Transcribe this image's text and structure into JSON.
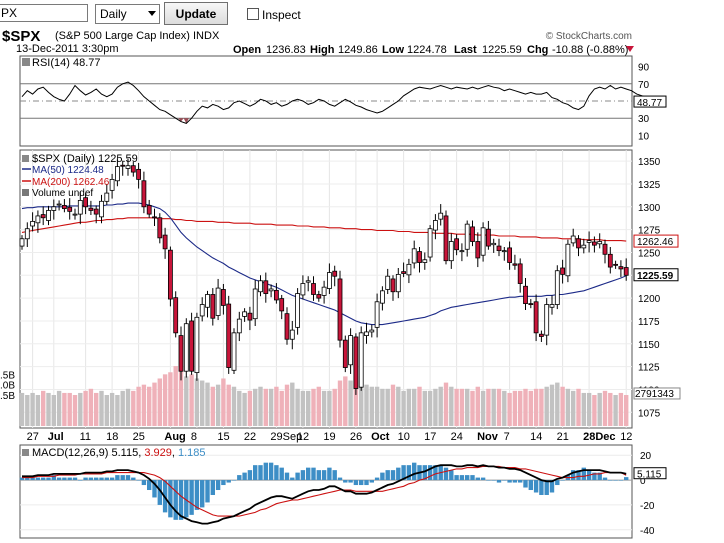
{
  "toolbar": {
    "symbol_value": "PX",
    "period_value": "Daily",
    "update_label": "Update",
    "inspect_label": "Inspect"
  },
  "header": {
    "symbol": "$SPX",
    "name": "(S&P 500 Large Cap Index) INDX",
    "date": "13-Dec-2011 3:30pm",
    "copyright": "© StockCharts.com",
    "open_label": "Open",
    "open": "1236.83",
    "high_label": "High",
    "high": "1249.86",
    "low_label": "Low",
    "low": "1224.78",
    "last_label": "Last",
    "last": "1225.59",
    "chg_label": "Chg",
    "chg": "-10.88 (-0.88%)"
  },
  "colors": {
    "up": "#ffffff",
    "down": "#c8153a",
    "ma50": "#1c2a88",
    "ma200": "#cc1111",
    "vol_down": "#efb1b9",
    "vol_up": "#c2c2c2",
    "macd": "#000000",
    "signal": "#cc1111",
    "hist": "#3d8ec6"
  },
  "chart_data": [
    {
      "type": "line",
      "name": "RSI panel",
      "legend": "RSI(14) 48.77",
      "current_label": "48.77",
      "current": 48.77,
      "ylim": [
        0,
        100
      ],
      "ticks": [
        90,
        70,
        50,
        30,
        10
      ],
      "levels": [
        70,
        30
      ],
      "values": [
        55,
        62,
        58,
        64,
        66,
        60,
        55,
        52,
        50,
        58,
        68,
        62,
        57,
        60,
        64,
        58,
        55,
        58,
        66,
        70,
        72,
        68,
        62,
        55,
        50,
        45,
        40,
        38,
        34,
        30,
        26,
        24,
        30,
        38,
        44,
        42,
        46,
        44,
        40,
        42,
        48,
        50,
        47,
        44,
        47,
        52,
        50,
        46,
        48,
        44,
        46,
        50,
        52,
        50,
        46,
        48,
        52,
        50,
        46,
        44,
        48,
        52,
        49,
        45,
        43,
        40,
        38,
        36,
        38,
        42,
        46,
        50,
        56,
        60,
        64,
        66,
        65,
        64,
        66,
        68,
        66,
        64,
        66,
        65,
        64,
        66,
        64,
        66,
        68,
        66,
        65,
        62,
        64,
        62,
        60,
        58,
        60,
        58,
        58,
        60,
        54,
        52,
        48,
        46,
        42,
        40,
        44,
        56,
        64,
        66,
        64,
        68,
        64,
        66,
        64,
        62,
        58,
        56,
        54,
        50,
        48.77
      ]
    },
    {
      "type": "candlestick",
      "name": "Price panel",
      "legend": [
        "$SPX (Daily) 1225.59",
        "MA(50) 1224.48",
        "MA(200) 1262.46",
        "Volume undef"
      ],
      "ylim": [
        1060,
        1360
      ],
      "ticks": [
        1350,
        1325,
        1300,
        1275,
        1250,
        1225,
        1200,
        1175,
        1150,
        1125,
        1100,
        1075
      ],
      "vol_ticks": [
        ".5B",
        ".0B",
        ".5B"
      ],
      "vol_tick_levels": [
        2.5,
        2.0,
        1.5
      ],
      "x_labels": [
        "27",
        "Jul",
        "11",
        "18",
        "25",
        "Aug",
        "8",
        "15",
        "22",
        "29Sep",
        "12",
        "19",
        "26",
        "Oct",
        "10",
        "17",
        "24",
        "Nov",
        "7",
        "14",
        "21",
        "28Dec",
        "12"
      ],
      "x_label_index": [
        2,
        6,
        12,
        17,
        22,
        28,
        33,
        38,
        43,
        48,
        53,
        58,
        63,
        67,
        72,
        77,
        82,
        87,
        92,
        97,
        102,
        107,
        114
      ],
      "ma200_label": "1262.46",
      "last_label": "1225.59",
      "volume_label": "2791343",
      "volume_label_value": 1.55,
      "ma200_value": 1262.46,
      "last_value": 1225.59,
      "close": [
        1265,
        1276,
        1284,
        1290,
        1288,
        1296,
        1300,
        1303,
        1298,
        1295,
        1292,
        1307,
        1300,
        1296,
        1292,
        1306,
        1315,
        1330,
        1344,
        1345,
        1345,
        1338,
        1330,
        1300,
        1292,
        1288,
        1266,
        1254,
        1199,
        1162,
        1120,
        1172,
        1120,
        1179,
        1193,
        1204,
        1178,
        1211,
        1192,
        1124,
        1162,
        1177,
        1185,
        1176,
        1210,
        1219,
        1205,
        1210,
        1198,
        1186,
        1155,
        1165,
        1205,
        1216,
        1219,
        1204,
        1200,
        1212,
        1228,
        1224,
        1154,
        1124,
        1159,
        1101,
        1162,
        1163,
        1165,
        1196,
        1208,
        1224,
        1207,
        1226,
        1227,
        1237,
        1254,
        1239,
        1242,
        1276,
        1285,
        1293,
        1241,
        1262,
        1253,
        1252,
        1281,
        1262,
        1244,
        1277,
        1257,
        1260,
        1252,
        1252,
        1239,
        1236,
        1216,
        1194,
        1193,
        1162,
        1158,
        1193,
        1193,
        1230,
        1226,
        1259,
        1268,
        1255,
        1258,
        1263,
        1258,
        1262,
        1248,
        1234,
        1236,
        1232,
        1225
      ],
      "ma50": [
        1298,
        1299,
        1299,
        1300,
        1300,
        1300,
        1300,
        1300,
        1300,
        1301,
        1301,
        1301,
        1301,
        1301,
        1301,
        1301,
        1302,
        1302,
        1303,
        1303,
        1304,
        1304,
        1304,
        1303,
        1302,
        1300,
        1298,
        1294,
        1288,
        1280,
        1272,
        1266,
        1261,
        1256,
        1252,
        1248,
        1244,
        1241,
        1238,
        1234,
        1231,
        1228,
        1225,
        1222,
        1220,
        1218,
        1216,
        1214,
        1212,
        1209,
        1206,
        1203,
        1201,
        1199,
        1197,
        1195,
        1193,
        1191,
        1189,
        1187,
        1184,
        1181,
        1178,
        1175,
        1173,
        1172,
        1171,
        1171,
        1171,
        1172,
        1173,
        1174,
        1175,
        1176,
        1177,
        1178,
        1179,
        1181,
        1183,
        1186,
        1188,
        1190,
        1191,
        1192,
        1193,
        1194,
        1195,
        1196,
        1197,
        1198,
        1199,
        1200,
        1201,
        1201,
        1202,
        1202,
        1202,
        1202,
        1202,
        1203,
        1203,
        1204,
        1204,
        1205,
        1206,
        1207,
        1208,
        1210,
        1212,
        1214,
        1216,
        1218,
        1220,
        1222,
        1224.48
      ],
      "ma200": [
        1272,
        1273,
        1274,
        1275,
        1276,
        1277,
        1278,
        1279,
        1280,
        1281,
        1282,
        1283,
        1283,
        1284,
        1285,
        1285,
        1286,
        1286,
        1287,
        1287,
        1288,
        1288,
        1288,
        1288,
        1288,
        1288,
        1287,
        1287,
        1287,
        1286,
        1286,
        1285,
        1285,
        1284,
        1284,
        1284,
        1284,
        1283,
        1283,
        1283,
        1282,
        1282,
        1282,
        1282,
        1281,
        1281,
        1281,
        1281,
        1280,
        1280,
        1280,
        1280,
        1279,
        1279,
        1279,
        1278,
        1278,
        1278,
        1277,
        1277,
        1277,
        1276,
        1276,
        1276,
        1275,
        1275,
        1275,
        1274,
        1274,
        1274,
        1274,
        1273,
        1273,
        1273,
        1272,
        1272,
        1272,
        1272,
        1271,
        1271,
        1271,
        1271,
        1270,
        1270,
        1270,
        1270,
        1269,
        1269,
        1269,
        1269,
        1268,
        1268,
        1268,
        1268,
        1267,
        1267,
        1267,
        1267,
        1266,
        1266,
        1266,
        1266,
        1265,
        1265,
        1265,
        1265,
        1264,
        1264,
        1264,
        1264,
        1263,
        1263,
        1263,
        1263,
        1262.46
      ],
      "volume": [
        1.6,
        1.5,
        1.6,
        1.5,
        1.7,
        1.6,
        1.5,
        1.7,
        1.6,
        1.6,
        1.5,
        1.6,
        1.7,
        1.8,
        1.6,
        1.7,
        1.5,
        1.6,
        1.5,
        1.7,
        1.8,
        1.7,
        1.9,
        2.0,
        1.9,
        2.1,
        2.3,
        2.5,
        2.6,
        2.9,
        2.7,
        2.4,
        2.5,
        2.3,
        2.2,
        2.1,
        1.9,
        2.0,
        2.3,
        2.0,
        1.9,
        1.7,
        1.6,
        1.7,
        1.8,
        1.9,
        1.8,
        1.8,
        1.9,
        1.7,
        2.0,
        2.1,
        1.8,
        1.7,
        1.7,
        1.8,
        1.9,
        1.7,
        1.7,
        1.8,
        2.2,
        2.4,
        2.2,
        2.4,
        2.1,
        2.0,
        1.9,
        1.9,
        1.8,
        1.8,
        2.0,
        1.9,
        1.7,
        1.8,
        1.8,
        1.9,
        1.7,
        1.7,
        1.8,
        1.9,
        2.1,
        1.9,
        1.8,
        1.8,
        1.8,
        1.7,
        1.9,
        1.7,
        1.8,
        1.8,
        1.8,
        1.7,
        1.6,
        1.7,
        1.7,
        1.8,
        1.7,
        1.8,
        1.8,
        1.9,
        2.0,
        2.1,
        1.9,
        1.8,
        1.7,
        1.8,
        1.6,
        1.6,
        1.5,
        1.6,
        1.7,
        1.6,
        1.5,
        1.6,
        1.5
      ]
    },
    {
      "type": "bar",
      "name": "MACD panel",
      "legend_name": "MACD(12,26,9)",
      "legend_macd": "5.115",
      "legend_signal": "3.929",
      "legend_hist": "1.185",
      "current_label": "5.115",
      "current": 5.115,
      "ylim": [
        -45,
        25
      ],
      "ticks": [
        20,
        0,
        -20,
        -40
      ],
      "tick_labels": [
        "20",
        "0",
        "-20",
        "-40"
      ],
      "macd": [
        3,
        3,
        3,
        4,
        4,
        4,
        5,
        5,
        5,
        5,
        5,
        5,
        6,
        6,
        6,
        6,
        7,
        7,
        8,
        8,
        8,
        7,
        6,
        4,
        1,
        -3,
        -8,
        -14,
        -20,
        -25,
        -29,
        -31,
        -33,
        -34,
        -35,
        -35,
        -34,
        -33,
        -31,
        -30,
        -29,
        -27,
        -25,
        -23,
        -20,
        -18,
        -16,
        -14,
        -13,
        -13,
        -14,
        -15,
        -13,
        -11,
        -9,
        -8,
        -8,
        -7,
        -5,
        -5,
        -7,
        -9,
        -9,
        -11,
        -11,
        -11,
        -10,
        -8,
        -6,
        -4,
        -3,
        -1,
        1,
        3,
        5,
        6,
        7,
        9,
        11,
        12,
        12,
        12,
        11,
        11,
        12,
        12,
        11,
        12,
        11,
        11,
        10,
        10,
        9,
        9,
        8,
        6,
        4,
        2,
        0,
        -1,
        -1,
        1,
        2,
        4,
        6,
        7,
        8,
        8,
        8,
        8,
        7,
        6,
        6,
        6,
        5.115
      ],
      "signal": [
        2,
        2,
        2,
        3,
        3,
        3,
        3,
        4,
        4,
        4,
        4,
        5,
        5,
        5,
        5,
        5,
        6,
        6,
        6,
        6,
        6,
        6,
        6,
        6,
        5,
        4,
        2,
        -1,
        -5,
        -9,
        -13,
        -16,
        -19,
        -22,
        -24,
        -26,
        -28,
        -29,
        -29,
        -29,
        -29,
        -29,
        -28,
        -27,
        -26,
        -24,
        -23,
        -21,
        -19,
        -18,
        -17,
        -16,
        -16,
        -15,
        -14,
        -13,
        -12,
        -11,
        -10,
        -9,
        -8,
        -8,
        -8,
        -9,
        -9,
        -9,
        -9,
        -9,
        -9,
        -8,
        -7,
        -6,
        -5,
        -3,
        -2,
        0,
        1,
        3,
        5,
        6,
        7,
        8,
        9,
        9,
        10,
        10,
        10,
        11,
        11,
        11,
        11,
        10,
        10,
        10,
        9,
        9,
        8,
        7,
        6,
        5,
        4,
        3,
        2,
        2,
        2,
        3,
        3,
        4,
        5,
        5,
        6,
        6,
        6,
        6,
        3.929
      ]
    }
  ]
}
